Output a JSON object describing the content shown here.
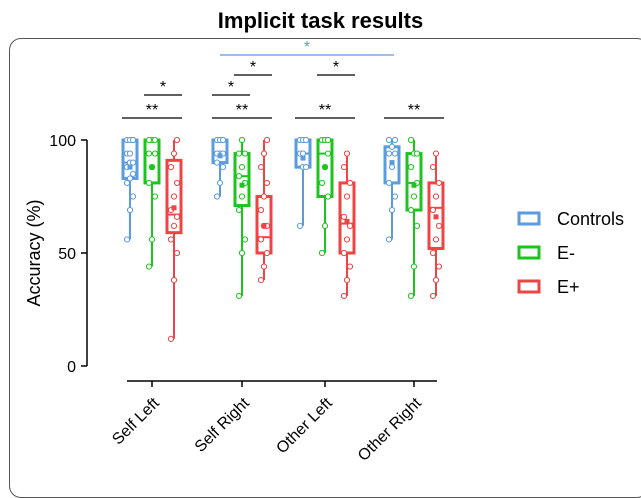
{
  "chart_data": {
    "type": "box",
    "title": "Implicit task results",
    "xlabel": "",
    "ylabel": "Accuracy (%)",
    "ylim": [
      0,
      100
    ],
    "yticks": [
      "0",
      "50",
      "100"
    ],
    "categories": [
      "Self Left",
      "Self Right",
      "Other Left",
      "Other Right"
    ],
    "series": [
      {
        "name": "Controls",
        "color": "#5b9bdf",
        "boxes": [
          {
            "min": 56,
            "q1": 83,
            "median": 90,
            "q3": 100,
            "max": 100,
            "mean": 88,
            "points": [
              56,
              69,
              75,
              81,
              83,
              85,
              88,
              90,
              90,
              94,
              94,
              100,
              100,
              100,
              100
            ]
          },
          {
            "min": 75,
            "q1": 90,
            "median": 94,
            "q3": 100,
            "max": 100,
            "mean": 93,
            "points": [
              75,
              81,
              88,
              90,
              94,
              94,
              94,
              100,
              100,
              100,
              100,
              100
            ]
          },
          {
            "min": 62,
            "q1": 88,
            "median": 94,
            "q3": 100,
            "max": 100,
            "mean": 92,
            "points": [
              62,
              88,
              88,
              94,
              94,
              100,
              100,
              100,
              100
            ]
          },
          {
            "min": 56,
            "q1": 81,
            "median": 94,
            "q3": 97,
            "max": 100,
            "mean": 90,
            "points": [
              56,
              69,
              75,
              81,
              88,
              94,
              94,
              97,
              100,
              100
            ]
          }
        ]
      },
      {
        "name": "E-",
        "color": "#1ec41e",
        "boxes": [
          {
            "min": 44,
            "q1": 81,
            "median": 94,
            "q3": 100,
            "max": 100,
            "mean": 88,
            "points": [
              44,
              56,
              75,
              81,
              88,
              94,
              94,
              100,
              100,
              100
            ]
          },
          {
            "min": 31,
            "q1": 71,
            "median": 84,
            "q3": 94,
            "max": 100,
            "mean": 80,
            "points": [
              31,
              50,
              56,
              69,
              75,
              81,
              84,
              88,
              94,
              94,
              100
            ]
          },
          {
            "min": 50,
            "q1": 75,
            "median": 94,
            "q3": 100,
            "max": 100,
            "mean": 88,
            "points": [
              50,
              62,
              75,
              81,
              88,
              94,
              100,
              100,
              100
            ]
          },
          {
            "min": 31,
            "q1": 69,
            "median": 81,
            "q3": 94,
            "max": 100,
            "mean": 80,
            "points": [
              31,
              44,
              62,
              69,
              75,
              81,
              88,
              94,
              94,
              100
            ]
          }
        ]
      },
      {
        "name": "E+",
        "color": "#ef4444",
        "boxes": [
          {
            "min": 12,
            "q1": 59,
            "median": 67,
            "q3": 91,
            "max": 100,
            "mean": 70,
            "points": [
              12,
              38,
              50,
              56,
              62,
              66,
              69,
              75,
              81,
              88,
              94,
              100
            ]
          },
          {
            "min": 38,
            "q1": 50,
            "median": 57,
            "q3": 75,
            "max": 100,
            "mean": 62,
            "points": [
              38,
              44,
              50,
              56,
              62,
              62,
              69,
              75,
              81,
              88,
              94,
              100
            ]
          },
          {
            "min": 31,
            "q1": 50,
            "median": 63,
            "q3": 81,
            "max": 94,
            "mean": 64,
            "points": [
              31,
              38,
              44,
              50,
              56,
              62,
              66,
              75,
              81,
              88,
              94
            ]
          },
          {
            "min": 31,
            "q1": 52,
            "median": 70,
            "q3": 81,
            "max": 94,
            "mean": 66,
            "points": [
              31,
              38,
              44,
              50,
              56,
              62,
              69,
              75,
              81,
              88,
              94
            ]
          }
        ]
      }
    ],
    "significance": [
      {
        "label": "**",
        "group": 0,
        "from": 0,
        "to": 2,
        "level": 0,
        "color": "#000000"
      },
      {
        "label": "*",
        "group": 0,
        "from": 1,
        "to": 2,
        "level": 1,
        "color": "#000000"
      },
      {
        "label": "**",
        "group": 1,
        "from": 0,
        "to": 2,
        "level": 0,
        "color": "#000000"
      },
      {
        "label": "*",
        "group": 1,
        "from": 0,
        "to": 1,
        "level": 1,
        "color": "#000000"
      },
      {
        "label": "*",
        "group": 1,
        "from": 1,
        "to": 2,
        "level": 2,
        "color": "#000000"
      },
      {
        "label": "**",
        "group": 2,
        "from": 0,
        "to": 2,
        "level": 0,
        "color": "#000000"
      },
      {
        "label": "*",
        "group": 2,
        "from": 1,
        "to": 2,
        "level": 2,
        "color": "#000000"
      },
      {
        "label": "**",
        "group": 3,
        "from": 0,
        "to": 2,
        "level": 0,
        "color": "#000000"
      },
      {
        "label": "*",
        "group": "1-3",
        "from": 0,
        "to": 0,
        "level": 3,
        "color": "#5b9bdf"
      }
    ],
    "legend_position": "right",
    "grid": false
  }
}
